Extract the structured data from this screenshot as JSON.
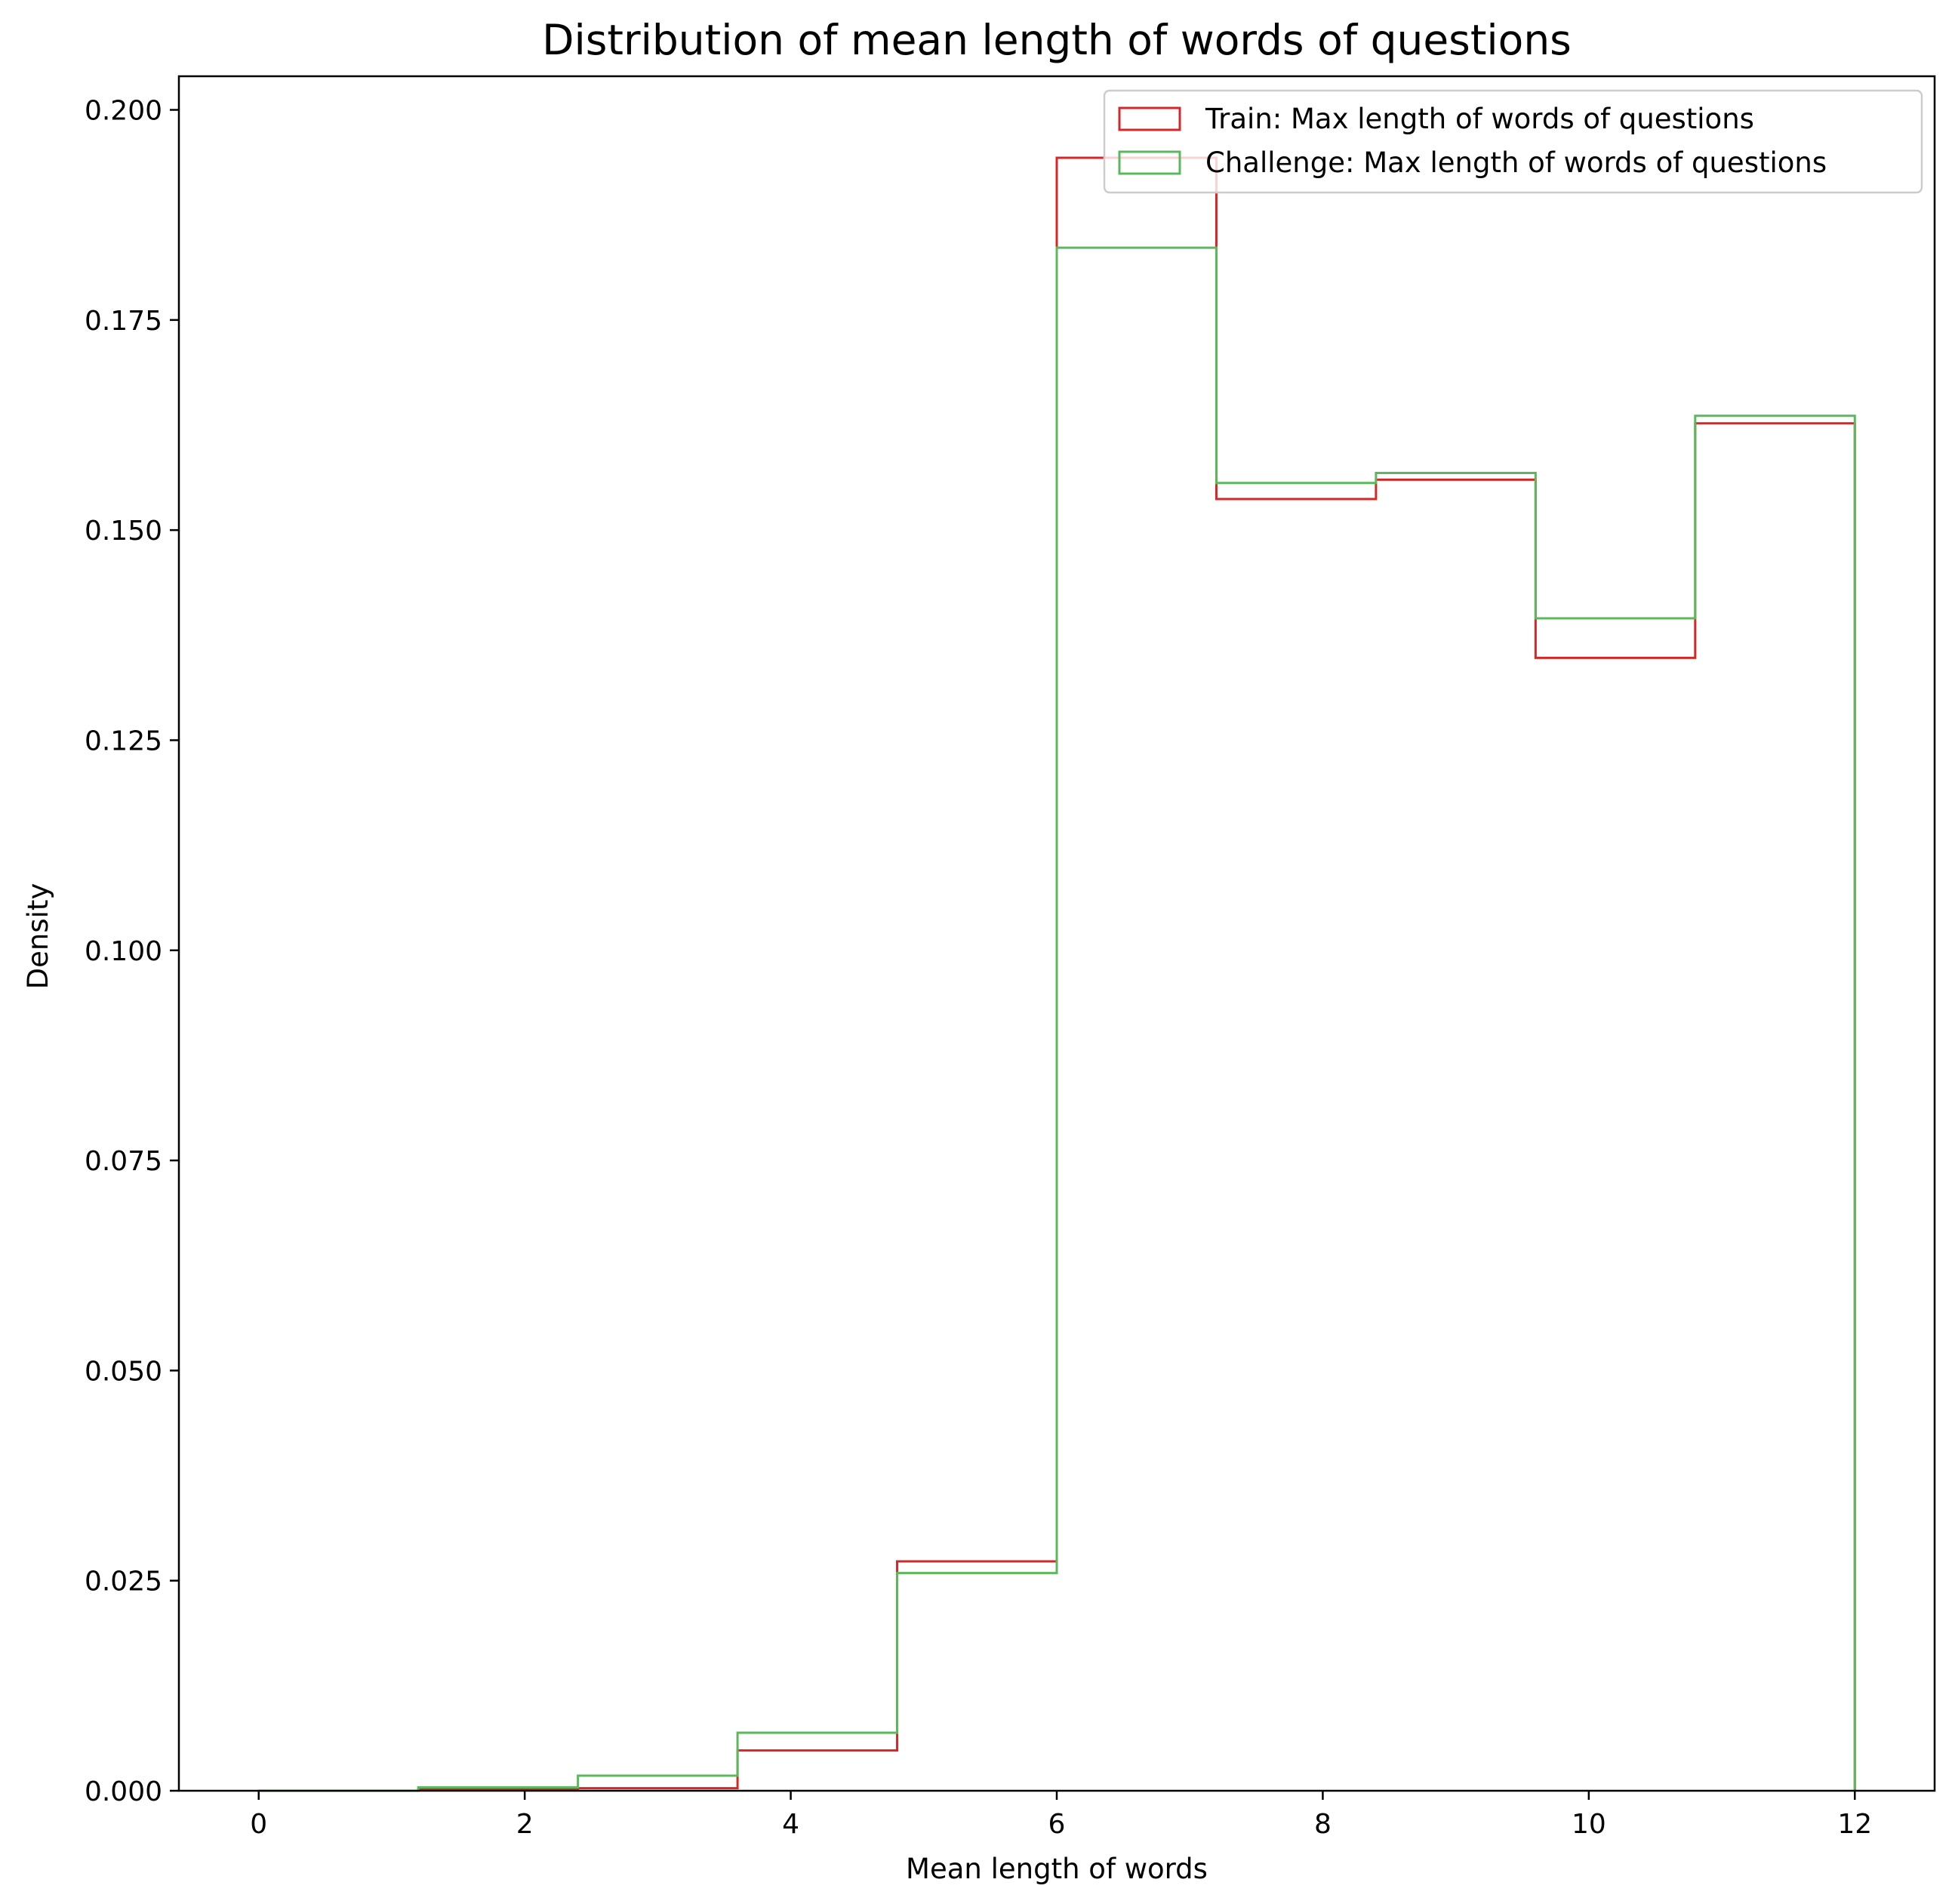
{
  "chart_data": {
    "type": "histogram-step",
    "title": "Distribution of mean length of words of questions",
    "xlabel": "Mean length of words",
    "ylabel": "Density",
    "xlim": [
      -0.6,
      12.6
    ],
    "ylim": [
      0.0,
      0.204
    ],
    "xticks": [
      0,
      2,
      4,
      6,
      8,
      10,
      12
    ],
    "xtick_labels": [
      "0",
      "2",
      "4",
      "6",
      "8",
      "10",
      "12"
    ],
    "yticks": [
      0.0,
      0.025,
      0.05,
      0.075,
      0.1,
      0.125,
      0.15,
      0.175,
      0.2
    ],
    "ytick_labels": [
      "0.000",
      "0.025",
      "0.050",
      "0.075",
      "0.100",
      "0.125",
      "0.150",
      "0.175",
      "0.200"
    ],
    "bin_edges": [
      0,
      1.2,
      2.4,
      3.6,
      4.8,
      6.0,
      7.2,
      8.4,
      9.6,
      10.8,
      12.0
    ],
    "grid": false,
    "legend_position": "top-right",
    "series": [
      {
        "name": "Train: Max length of words of questions",
        "color": "#d62728",
        "values": [
          0.0,
          0.0002,
          0.0003,
          0.0048,
          0.0273,
          0.1943,
          0.1537,
          0.156,
          0.1348,
          0.1627
        ]
      },
      {
        "name": "Challenge: Max length of words of questions",
        "color": "#5cb85c",
        "values": [
          0.0,
          0.0004,
          0.0018,
          0.0069,
          0.0259,
          0.1836,
          0.1556,
          0.1568,
          0.1395,
          0.1636
        ]
      }
    ]
  }
}
